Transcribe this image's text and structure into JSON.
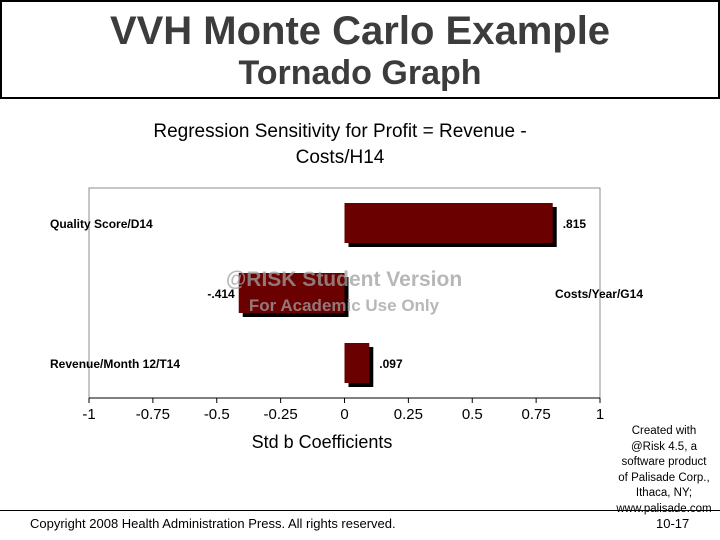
{
  "slide": {
    "title": "VVH Monte Carlo Example",
    "subtitle": "Tornado Graph",
    "copyright": "Copyright 2008 Health Administration Press. All rights reserved.",
    "page_number": "10-17",
    "credit_lines": [
      "Created with",
      "@Risk 4.5, a",
      "software product",
      "of Palisade Corp.,",
      "Ithaca, NY;",
      "www.palisade.com"
    ]
  },
  "chart_data": {
    "type": "bar",
    "orientation": "horizontal",
    "title_lines": [
      "Regression Sensitivity for Profit = Revenue -",
      "Costs/H14"
    ],
    "xlabel": "Std b Coefficients",
    "xlim": [
      -1,
      1
    ],
    "xticks": [
      "-1",
      "-0.75",
      "-0.5",
      "-0.25",
      "0",
      "0.25",
      "0.5",
      "0.75",
      "1"
    ],
    "categories": [
      "Quality Score/D14",
      "Costs/Year/G14",
      "Revenue/Month 12/T14"
    ],
    "values": [
      0.815,
      -0.414,
      0.097
    ],
    "value_labels": [
      ".815",
      "-.414",
      ".097"
    ],
    "bar_color": "#6b0000",
    "watermark": [
      "@RISK Student Version",
      "For Academic Use Only"
    ],
    "grid": false
  }
}
